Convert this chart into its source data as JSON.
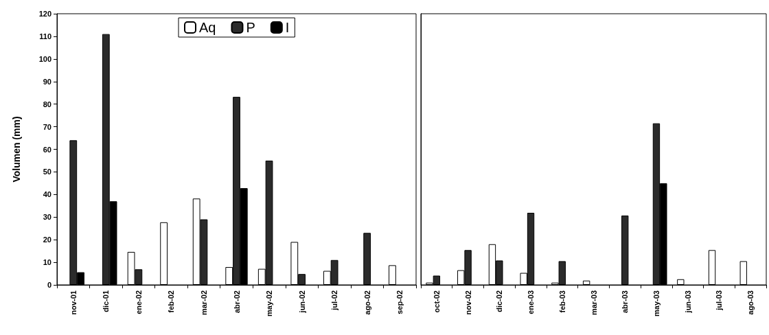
{
  "chart_data": [
    {
      "type": "bar",
      "ylabel": "Volumen (mm)",
      "categories": [
        "nov-01",
        "dic-01",
        "ene-02",
        "feb-02",
        "mar-02",
        "abr-02",
        "may-02",
        "jun-02",
        "jul-02",
        "ago-02",
        "sep-02"
      ],
      "series": [
        {
          "name": "Aq",
          "color": "#ffffff",
          "values": [
            null,
            null,
            14.6,
            27.7,
            38.2,
            7.9,
            7.1,
            19,
            6.2,
            null,
            8.7
          ]
        },
        {
          "name": "P",
          "color": "#2b2b2b",
          "values": [
            64,
            111,
            6.9,
            null,
            29,
            83.2,
            55,
            4.8,
            11,
            23,
            null
          ]
        },
        {
          "name": "I",
          "color": "#000000",
          "values": [
            5.6,
            37,
            null,
            null,
            null,
            42.8,
            null,
            null,
            null,
            null,
            null
          ]
        }
      ],
      "ylim": [
        0,
        120
      ],
      "yticks": [
        0,
        10,
        20,
        30,
        40,
        50,
        60,
        70,
        80,
        90,
        100,
        110,
        120
      ],
      "legend": "top"
    },
    {
      "type": "bar",
      "categories": [
        "oct-02",
        "nov-02",
        "dic-02",
        "ene-03",
        "feb-03",
        "mar-03",
        "abr-03",
        "may-03",
        "jun-03",
        "jul-03",
        "ago-03"
      ],
      "series": [
        {
          "color": "#ffffff",
          "values": [
            1,
            6.5,
            18,
            5.3,
            1,
            1.9,
            null,
            null,
            2.5,
            15.4,
            10.5
          ]
        },
        {
          "color": "#2b2b2b",
          "values": [
            4.1,
            15.4,
            10.8,
            31.9,
            10.5,
            null,
            30.7,
            71.5,
            null,
            null,
            null
          ]
        },
        {
          "color": "#000000",
          "values": [
            null,
            null,
            null,
            null,
            null,
            null,
            null,
            45,
            null,
            null,
            null
          ]
        }
      ],
      "ylim": [
        0,
        120
      ],
      "yticks": [
        0,
        10,
        20,
        30,
        40,
        50,
        60,
        70,
        80,
        90,
        100,
        110,
        120
      ],
      "tick_labels": "x"
    }
  ]
}
